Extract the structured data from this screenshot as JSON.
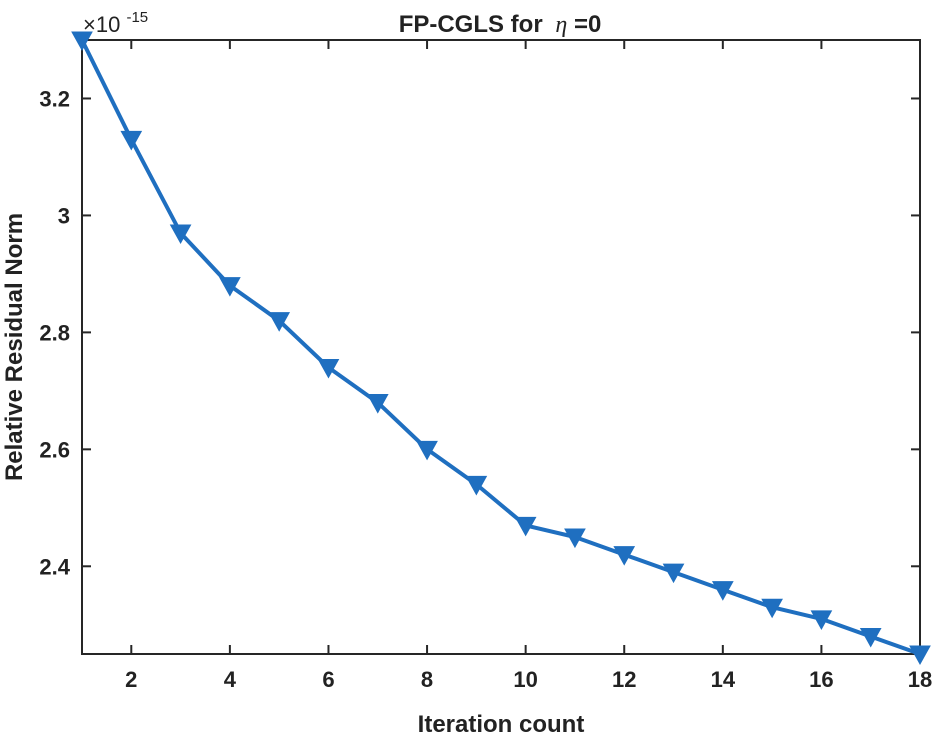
{
  "chart_data": {
    "type": "line",
    "title": "FP-CGLS  for",
    "title_symbol": "η",
    "title_suffix": "=0",
    "xlabel": "Iteration count",
    "ylabel": "Relative Residual Norm",
    "y_exponent_base": "×10",
    "y_exponent_power": "-15",
    "xlim": [
      1,
      18
    ],
    "ylim": [
      2.25,
      3.3
    ],
    "xticks": [
      2,
      4,
      6,
      8,
      10,
      12,
      14,
      16,
      18
    ],
    "yticks": [
      2.4,
      2.6,
      2.8,
      3.0,
      3.2
    ],
    "ytick_labels": [
      "2.4",
      "2.6",
      "2.8",
      "3",
      "3.2"
    ],
    "grid": false,
    "marker": "down-triangle",
    "series_color": "#1f6fc0",
    "series": [
      {
        "x": [
          1,
          2,
          3,
          4,
          5,
          6,
          7,
          8,
          9,
          10,
          11,
          12,
          13,
          14,
          15,
          16,
          17,
          18
        ],
        "values": [
          3.3,
          3.13,
          2.97,
          2.88,
          2.82,
          2.74,
          2.68,
          2.6,
          2.54,
          2.47,
          2.45,
          2.42,
          2.39,
          2.36,
          2.33,
          2.31,
          2.28,
          2.25
        ]
      }
    ]
  }
}
